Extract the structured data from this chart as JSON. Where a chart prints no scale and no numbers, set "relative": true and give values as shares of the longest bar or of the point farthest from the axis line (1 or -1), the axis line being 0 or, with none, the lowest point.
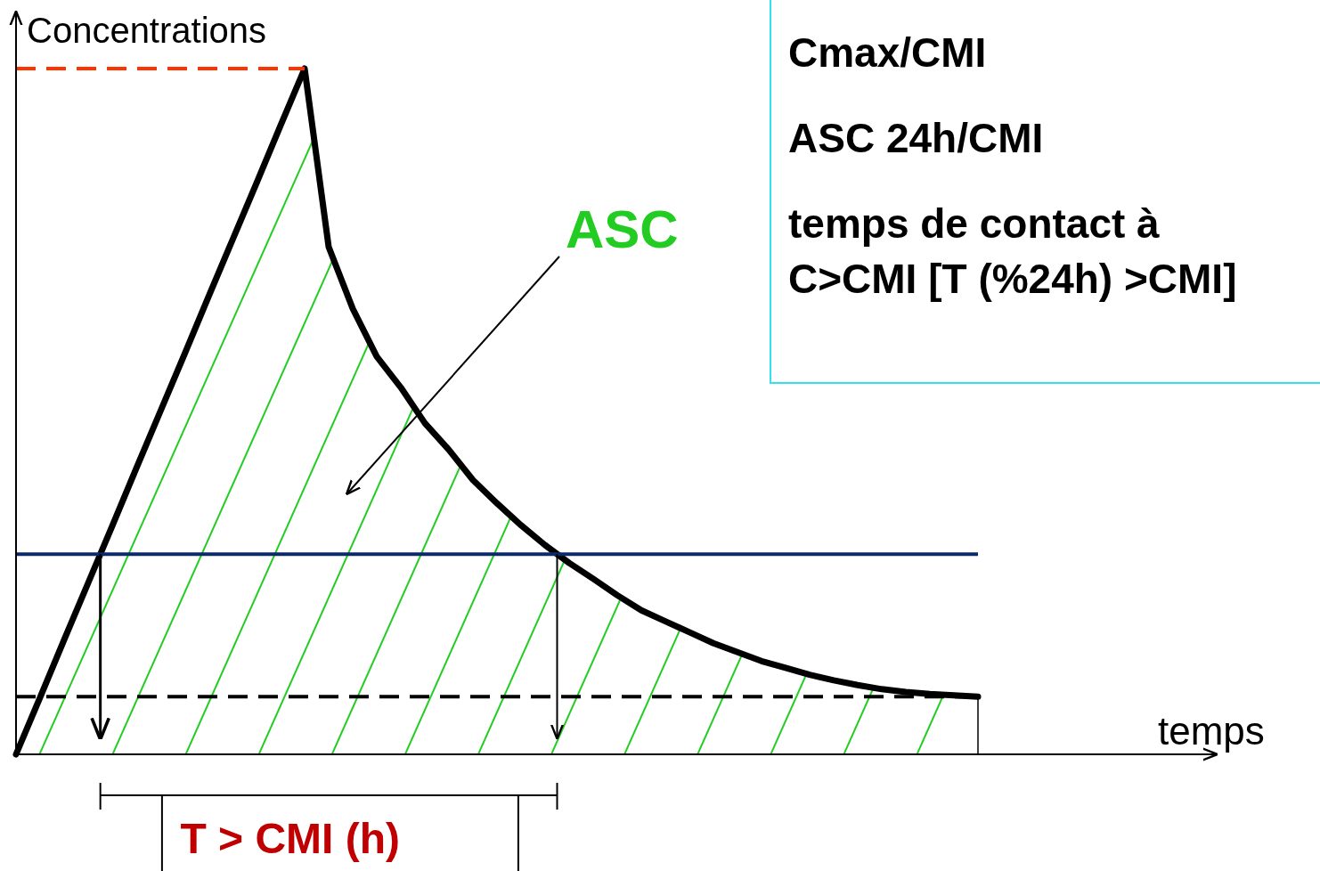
{
  "chart_data": {
    "type": "area",
    "relative": true,
    "ylabel": "Concentrations",
    "xlabel": "temps",
    "categories": [
      null,
      null,
      null,
      null,
      null,
      null,
      null,
      null,
      null,
      null,
      null,
      null,
      null,
      null,
      null,
      null,
      null,
      null,
      null,
      null,
      null,
      null,
      null,
      null,
      null,
      null,
      null,
      null,
      null,
      null,
      null,
      null,
      null,
      null,
      null,
      null,
      null,
      null,
      null,
      null,
      null
    ],
    "series": [
      {
        "color": "#000000",
        "values": [
          0,
          0.083,
          0.167,
          0.25,
          0.333,
          0.417,
          0.5,
          0.583,
          0.667,
          0.75,
          0.833,
          0.917,
          1,
          0.74,
          0.65,
          0.58,
          0.535,
          0.483,
          0.444,
          0.4,
          0.366,
          0.334,
          0.305,
          0.279,
          0.256,
          0.232,
          0.21,
          0.194,
          0.178,
          0.162,
          0.149,
          0.136,
          0.126,
          0.116,
          0.108,
          0.101,
          0.095,
          0.091,
          0.088,
          0.086,
          0.084
        ]
      }
    ],
    "ref_lines": [
      {
        "axis": "y",
        "value": 1,
        "color": "#ff3300",
        "line_style": "dashed"
      },
      {
        "axis": "y",
        "value": 0.292,
        "color": "#0a2a6a",
        "line_style": "solid"
      },
      {
        "axis": "y",
        "value": 0.084,
        "color": "#000000",
        "line_style": "dashed"
      }
    ],
    "annotations": [
      "ASC",
      "T > CMI (h)",
      "Cmax/CMI",
      "ASC 24h/CMI",
      "temps de contact à C>CMI [T (%24h) >CMI]"
    ]
  }
}
